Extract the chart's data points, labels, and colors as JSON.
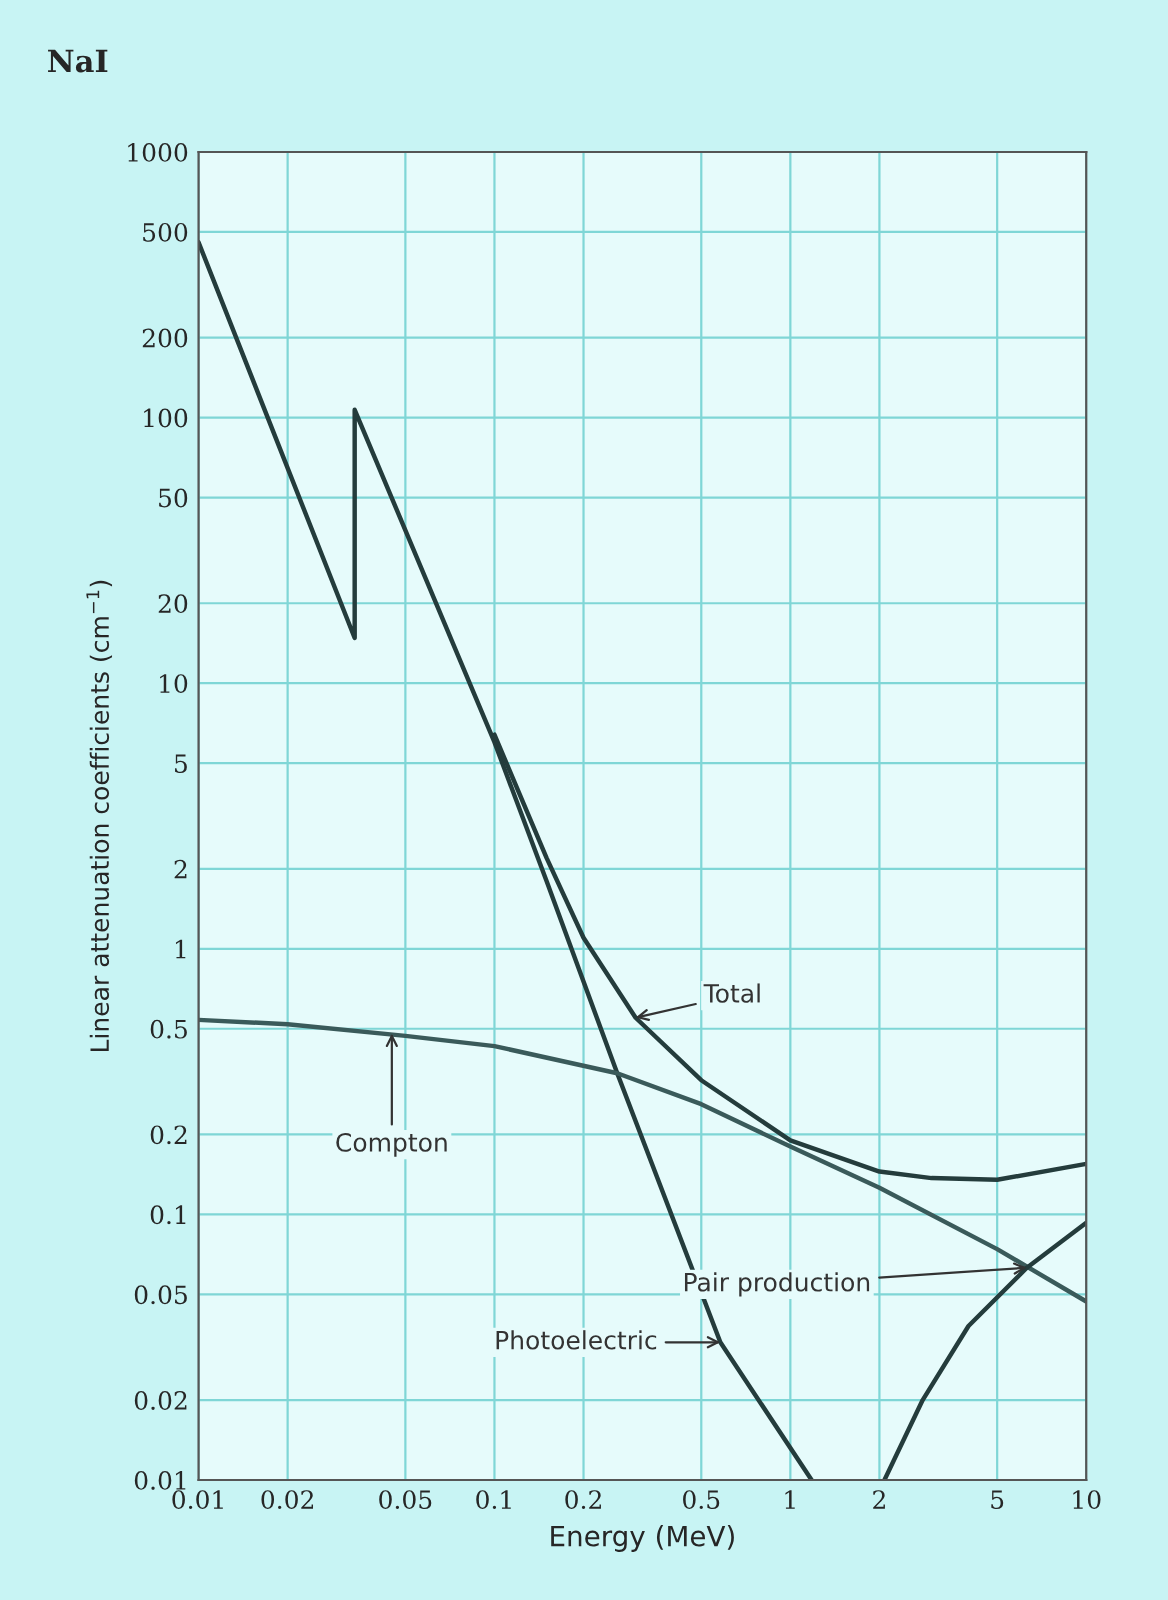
{
  "chart_data": {
    "type": "line",
    "title": "NaI",
    "xlabel": "Energy (MeV)",
    "ylabel": "Linear attenuation coefficients (cm$^{−1}$)",
    "log": "xy",
    "grid": true,
    "marker": "none",
    "line_style": "solid",
    "xlim": [
      0.01,
      10
    ],
    "ylim": [
      0.01,
      1000
    ],
    "xticks": [
      0.01,
      0.02,
      0.05,
      0.1,
      0.2,
      0.5,
      1,
      2,
      5,
      10
    ],
    "yticks": [
      0.01,
      0.02,
      0.05,
      0.1,
      0.2,
      0.5,
      1,
      2,
      5,
      10,
      20,
      50,
      100,
      200,
      500,
      1000
    ],
    "series": [
      {
        "color": "#243c3c",
        "x": [
          0.01,
          0.0337,
          0.0337,
          0.1,
          0.15,
          0.26,
          0.58,
          1.18
        ],
        "values": [
          457,
          14.8,
          107,
          6,
          1.8,
          0.34,
          0.033,
          0.01
        ]
      },
      {
        "color": "#243c3c",
        "x": [
          0.1,
          0.15,
          0.2,
          0.3,
          0.5,
          1,
          2,
          3,
          5,
          10
        ],
        "values": [
          6.4,
          2.2,
          1.1,
          0.55,
          0.32,
          0.19,
          0.145,
          0.137,
          0.135,
          0.155
        ]
      },
      {
        "color": "#3a5a5a",
        "x": [
          0.01,
          0.02,
          0.05,
          0.1,
          0.26,
          0.5,
          1,
          2,
          5,
          10
        ],
        "values": [
          0.54,
          0.52,
          0.47,
          0.43,
          0.34,
          0.26,
          0.18,
          0.126,
          0.074,
          0.047
        ]
      },
      {
        "color": "#243c3c",
        "x": [
          2.08,
          2.8,
          4,
          6.3,
          10
        ],
        "values": [
          0.01,
          0.02,
          0.038,
          0.063,
          0.093
        ]
      }
    ],
    "annotations": [
      {
        "text": "Photoelectric",
        "x": 0.58,
        "y": 0.033
      },
      {
        "text": "Total",
        "x": 0.3,
        "y": 0.55
      },
      {
        "text": "Compton",
        "x": 0.045,
        "y": 0.48
      },
      {
        "text": "Pair production",
        "x": 6.3,
        "y": 0.063
      }
    ]
  }
}
